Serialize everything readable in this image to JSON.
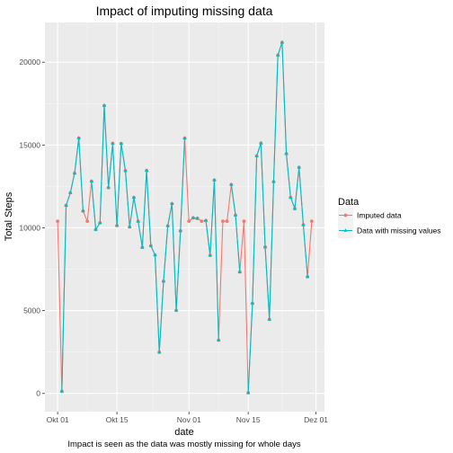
{
  "chart_data": {
    "type": "line",
    "title": "Impact of imputing missing data",
    "xlabel": "date",
    "ylabel": "Total Steps",
    "caption": "Impact is seen as the data was mostly missing for whole days",
    "x_tick_labels": [
      "Okt 01",
      "Okt 15",
      "Nov 01",
      "Nov 15",
      "Dez 01"
    ],
    "x_tick_values": [
      "2012-10-01",
      "2012-10-15",
      "2012-11-01",
      "2012-11-15",
      "2012-12-01"
    ],
    "y_tick_labels": [
      "0",
      "5000",
      "10000",
      "15000",
      "20000"
    ],
    "y_tick_values": [
      0,
      5000,
      10000,
      15000,
      20000
    ],
    "xlim": [
      "2012-09-28",
      "2012-12-03"
    ],
    "ylim": [
      -1100,
      22400
    ],
    "grid": true,
    "legend": {
      "title": "Data",
      "position": "right",
      "entries": [
        "Imputed data",
        "Data with missing values"
      ]
    },
    "x": [
      "2012-10-01",
      "2012-10-02",
      "2012-10-03",
      "2012-10-04",
      "2012-10-05",
      "2012-10-06",
      "2012-10-07",
      "2012-10-08",
      "2012-10-09",
      "2012-10-10",
      "2012-10-11",
      "2012-10-12",
      "2012-10-13",
      "2012-10-14",
      "2012-10-15",
      "2012-10-16",
      "2012-10-17",
      "2012-10-18",
      "2012-10-19",
      "2012-10-20",
      "2012-10-21",
      "2012-10-22",
      "2012-10-23",
      "2012-10-24",
      "2012-10-25",
      "2012-10-26",
      "2012-10-27",
      "2012-10-28",
      "2012-10-29",
      "2012-10-30",
      "2012-10-31",
      "2012-11-01",
      "2012-11-02",
      "2012-11-03",
      "2012-11-04",
      "2012-11-05",
      "2012-11-06",
      "2012-11-07",
      "2012-11-08",
      "2012-11-09",
      "2012-11-10",
      "2012-11-11",
      "2012-11-12",
      "2012-11-13",
      "2012-11-14",
      "2012-11-15",
      "2012-11-16",
      "2012-11-17",
      "2012-11-18",
      "2012-11-19",
      "2012-11-20",
      "2012-11-21",
      "2012-11-22",
      "2012-11-23",
      "2012-11-24",
      "2012-11-25",
      "2012-11-26",
      "2012-11-27",
      "2012-11-28",
      "2012-11-29",
      "2012-11-30"
    ],
    "series": [
      {
        "name": "Imputed data",
        "color": "#f8766d",
        "marker": "circle",
        "values": [
          10400,
          126,
          11352,
          12116,
          13294,
          15420,
          11015,
          10400,
          12811,
          9900,
          10304,
          17382,
          12426,
          15098,
          10139,
          15084,
          13452,
          10056,
          11829,
          10395,
          8821,
          13460,
          8918,
          8355,
          2492,
          6778,
          10119,
          11458,
          5018,
          9819,
          15414,
          10400,
          10600,
          10571,
          10400,
          10439,
          8334,
          12883,
          3219,
          10400,
          10400,
          12608,
          10765,
          7336,
          10400,
          41,
          5441,
          14339,
          15110,
          8841,
          4472,
          12787,
          20427,
          21194,
          14478,
          11834,
          11162,
          13646,
          10183,
          7047,
          10400
        ]
      },
      {
        "name": "Data with missing values",
        "color": "#00bfc4",
        "marker": "triangle",
        "values": [
          null,
          126,
          11352,
          12116,
          13294,
          15420,
          11015,
          null,
          12811,
          9900,
          10304,
          17382,
          12426,
          15098,
          10139,
          15084,
          13452,
          10056,
          11829,
          10395,
          8821,
          13460,
          8918,
          8355,
          2492,
          6778,
          10119,
          11458,
          5018,
          9819,
          15414,
          null,
          10600,
          10571,
          null,
          10439,
          8334,
          12883,
          3219,
          null,
          null,
          12608,
          10765,
          7336,
          null,
          41,
          5441,
          14339,
          15110,
          8841,
          4472,
          12787,
          20427,
          21194,
          14478,
          11834,
          11162,
          13646,
          10183,
          7047,
          null
        ]
      }
    ]
  }
}
